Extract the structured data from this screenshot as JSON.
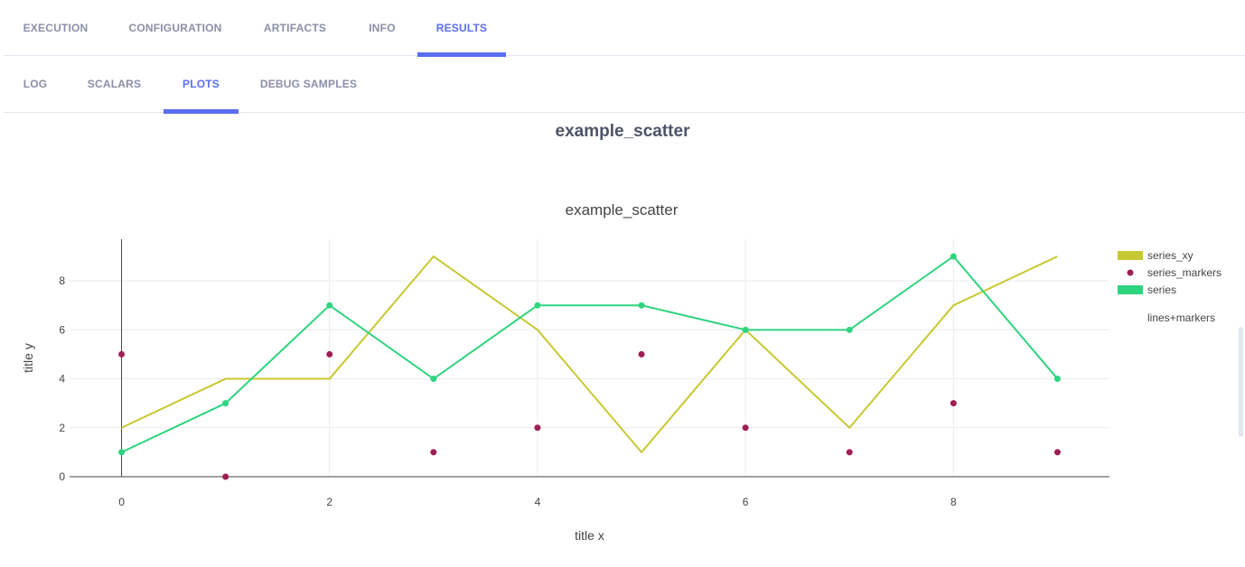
{
  "tabs": [
    {
      "label": "EXECUTION",
      "active": false
    },
    {
      "label": "CONFIGURATION",
      "active": false
    },
    {
      "label": "ARTIFACTS",
      "active": false
    },
    {
      "label": "INFO",
      "active": false
    },
    {
      "label": "RESULTS",
      "active": true
    }
  ],
  "subtabs": [
    {
      "label": "LOG",
      "active": false
    },
    {
      "label": "SCALARS",
      "active": false
    },
    {
      "label": "PLOTS",
      "active": true
    },
    {
      "label": "DEBUG SAMPLES",
      "active": false
    }
  ],
  "plot_heading": "example_scatter",
  "chart_data": {
    "type": "line",
    "title": "example_scatter",
    "xlabel": "title x",
    "ylabel": "title y",
    "xlim": [
      -0.5,
      9.5
    ],
    "ylim": [
      0,
      9.7
    ],
    "xticks": [
      0,
      2,
      4,
      6,
      8
    ],
    "yticks": [
      0,
      2,
      4,
      6,
      8
    ],
    "grid": true,
    "legend_position": "right",
    "legend_title": "lines+markers",
    "series": [
      {
        "name": "series_xy",
        "mode": "lines",
        "color": "#c8c832",
        "x": [
          0,
          1,
          2,
          3,
          4,
          5,
          6,
          7,
          8,
          9
        ],
        "y": [
          2,
          4,
          4,
          9,
          6,
          1,
          6,
          2,
          7,
          9
        ]
      },
      {
        "name": "series_markers",
        "mode": "markers",
        "color": "#9e1f55",
        "x": [
          0,
          1,
          2,
          3,
          4,
          5,
          6,
          7,
          8,
          9
        ],
        "y": [
          5,
          0,
          5,
          1,
          2,
          5,
          2,
          1,
          3,
          1
        ]
      },
      {
        "name": "series",
        "mode": "lines+markers",
        "color": "#2ed47e",
        "x": [
          0,
          1,
          2,
          3,
          4,
          5,
          6,
          7,
          8,
          9
        ],
        "y": [
          1,
          3,
          7,
          4,
          7,
          7,
          6,
          6,
          9,
          4
        ]
      }
    ]
  }
}
